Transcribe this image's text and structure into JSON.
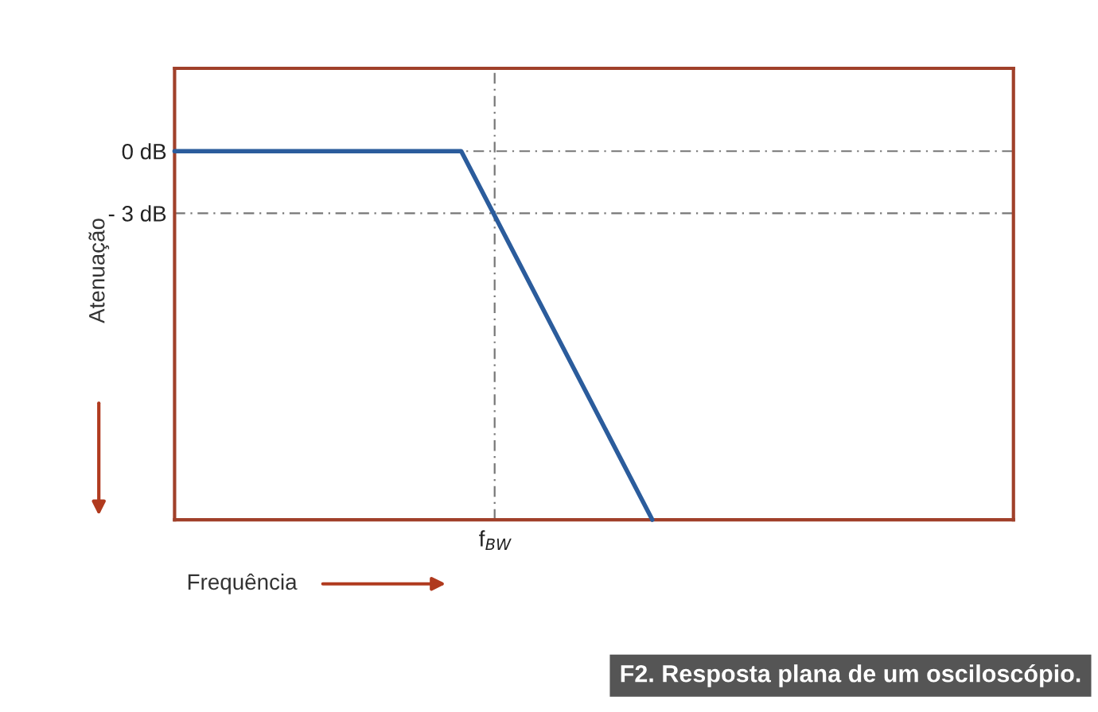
{
  "chart_data": {
    "type": "line",
    "xlabel": "Frequência",
    "ylabel": "Atenuação",
    "categories": [
      null,
      null,
      null,
      null,
      null,
      null,
      null,
      null,
      null
    ],
    "series": [
      {
        "color": "#2b5c9c",
        "values": [
          0,
          0,
          0,
          0,
          -8.9,
          -17.8,
          null,
          null,
          null
        ]
      }
    ],
    "ylim": [
      -17.8,
      4
    ],
    "yticks": [
      {
        "value": 0,
        "label": "0 dB"
      },
      {
        "value": -3,
        "label": "- 3 dB"
      }
    ],
    "tick_labels": "y",
    "ref_lines": [
      {
        "axis": "y",
        "value": 0,
        "color": "#777777",
        "line_style": "dashed"
      },
      {
        "axis": "y",
        "value": -3,
        "color": "#777777",
        "line_style": "dashed"
      }
    ],
    "grid": false,
    "legend": false,
    "marker": "none",
    "line_style": "solid",
    "annotations": [
      "f$_{BW}$",
      "F2. Resposta plana de um osciloscópio."
    ]
  }
}
